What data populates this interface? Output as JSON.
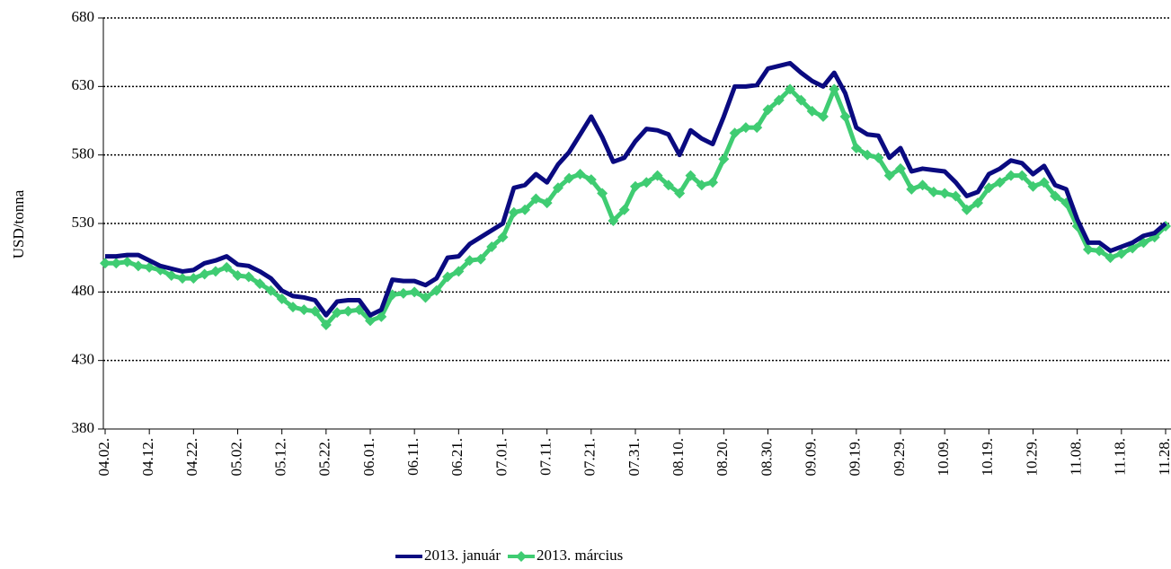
{
  "chart_data": {
    "type": "line",
    "y_label": "USD/tonna",
    "categories": [
      "04.02.",
      null,
      null,
      null,
      "04.12.",
      null,
      null,
      null,
      "04.22.",
      null,
      null,
      null,
      "05.02.",
      null,
      null,
      null,
      "05.12.",
      null,
      null,
      null,
      "05.22.",
      null,
      null,
      null,
      "06.01.",
      null,
      null,
      null,
      "06.11.",
      null,
      null,
      null,
      "06.21.",
      null,
      null,
      null,
      "07.01.",
      null,
      null,
      null,
      "07.11.",
      null,
      null,
      null,
      "07.21.",
      null,
      null,
      null,
      "07.31.",
      null,
      null,
      null,
      "08.10.",
      null,
      null,
      null,
      "08.20.",
      null,
      null,
      null,
      "08.30.",
      null,
      null,
      null,
      "09.09.",
      null,
      null,
      null,
      "09.19.",
      null,
      null,
      null,
      "09.29.",
      null,
      null,
      null,
      "10.09.",
      null,
      null,
      null,
      "10.19.",
      null,
      null,
      null,
      "10.29.",
      null,
      null,
      null,
      "11.08.",
      null,
      null,
      null,
      "11.18.",
      null,
      null,
      null,
      "11.28."
    ],
    "series": [
      {
        "name": "2013. január",
        "color": "#0a0a80",
        "marker": "none",
        "values": [
          506,
          506,
          507,
          507,
          503,
          499,
          497,
          495,
          496,
          501,
          503,
          506,
          500,
          499,
          495,
          490,
          481,
          477,
          476,
          474,
          463,
          473,
          474,
          474,
          463,
          467,
          489,
          488,
          488,
          485,
          490,
          505,
          506,
          515,
          520,
          525,
          530,
          556,
          558,
          566,
          560,
          573,
          582,
          595,
          608,
          593,
          575,
          578,
          590,
          599,
          598,
          595,
          580,
          598,
          592,
          588,
          608,
          630,
          630,
          631,
          643,
          645,
          647,
          640,
          634,
          630,
          640,
          625,
          600,
          595,
          594,
          578,
          585,
          568,
          570,
          569,
          568,
          560,
          550,
          553,
          566,
          570,
          576,
          574,
          566,
          572,
          558,
          555,
          533,
          516,
          516,
          510,
          513,
          516,
          521,
          523,
          530
        ]
      },
      {
        "name": "2013. március",
        "color": "#3fcc72",
        "marker": "diamond",
        "values": [
          501,
          501,
          502,
          499,
          498,
          496,
          492,
          490,
          490,
          493,
          495,
          498,
          492,
          491,
          486,
          481,
          475,
          469,
          467,
          466,
          456,
          465,
          466,
          467,
          459,
          462,
          478,
          479,
          480,
          476,
          481,
          491,
          495,
          503,
          504,
          513,
          520,
          538,
          540,
          548,
          545,
          556,
          563,
          566,
          562,
          552,
          532,
          540,
          557,
          560,
          565,
          558,
          552,
          565,
          558,
          560,
          577,
          596,
          600,
          600,
          613,
          620,
          628,
          620,
          612,
          608,
          628,
          608,
          585,
          580,
          578,
          565,
          570,
          555,
          558,
          553,
          552,
          550,
          540,
          545,
          556,
          560,
          565,
          565,
          557,
          560,
          550,
          545,
          528,
          511,
          510,
          505,
          508,
          512,
          516,
          520,
          528
        ]
      }
    ],
    "ylim": [
      380,
      680
    ],
    "yticks": [
      380,
      430,
      480,
      530,
      580,
      630,
      680
    ],
    "grid": true,
    "legend": "bottom"
  }
}
